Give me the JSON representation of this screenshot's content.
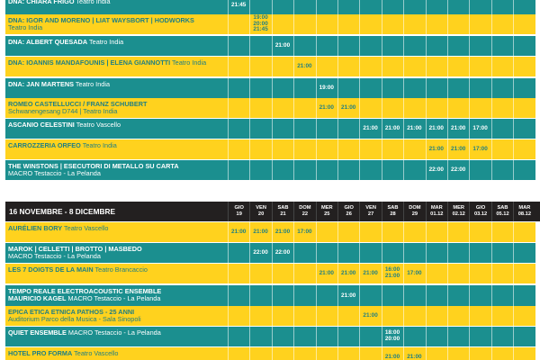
{
  "sections": [
    {
      "rows": [
        {
          "name": "DNA: CHIARA FRIGO",
          "sub": " Teatro India",
          "color": "teal",
          "times": [
            {
              "c": 0,
              "t": "21:45"
            }
          ]
        },
        {
          "name": "DNA: IGOR AND MORENO | LIAT WAYSBORT | HODWORKS",
          "sub": "Teatro India",
          "color": "yellow",
          "times": [
            {
              "c": 1,
              "t": "19:00 20:00 21:45"
            }
          ]
        },
        {
          "name": "DNA: ALBERT QUESADA",
          "sub": " Teatro India",
          "color": "teal",
          "times": [
            {
              "c": 2,
              "t": "21:00"
            }
          ]
        },
        {
          "name": "DNA: IOANNIS MANDAFOUNIS | ELENA GIANNOTTI",
          "sub": " Teatro India",
          "color": "yellow",
          "times": [
            {
              "c": 3,
              "t": "21:00"
            }
          ]
        },
        {
          "name": "DNA: JAN MARTENS",
          "sub": " Teatro India",
          "color": "teal",
          "times": [
            {
              "c": 4,
              "t": "19:00"
            }
          ]
        },
        {
          "name": "ROMEO CASTELLUCCI / FRANZ SCHUBERT",
          "sub": "Schwanengesang D744 | Teatro India",
          "color": "yellow",
          "times": [
            {
              "c": 4,
              "t": "21:00"
            },
            {
              "c": 5,
              "t": "21:00"
            }
          ]
        },
        {
          "name": "ASCANIO CELESTINI",
          "sub": " Teatro Vascello",
          "color": "teal",
          "times": [
            {
              "c": 6,
              "t": "21:00"
            },
            {
              "c": 7,
              "t": "21:00"
            },
            {
              "c": 8,
              "t": "21:00"
            },
            {
              "c": 9,
              "t": "21:00"
            },
            {
              "c": 10,
              "t": "21:00"
            },
            {
              "c": 11,
              "t": "17:00"
            }
          ]
        },
        {
          "name": "CARROZZERIA ORFEO",
          "sub": " Teatro India",
          "color": "yellow",
          "times": [
            {
              "c": 9,
              "t": "21:00"
            },
            {
              "c": 10,
              "t": "21:00"
            },
            {
              "c": 11,
              "t": "17:00"
            }
          ]
        },
        {
          "name": "THE WINSTONS | ESECUTORI DI METALLO SU CARTA",
          "sub": "MACRO Testaccio - La Pelanda",
          "color": "teal",
          "times": [
            {
              "c": 9,
              "t": "22:00"
            },
            {
              "c": 10,
              "t": "22:00"
            }
          ]
        }
      ]
    },
    {
      "header": {
        "title": "16 NOVEMBRE - 8 DICEMBRE",
        "days": [
          {
            "d": "GIO",
            "n": "19"
          },
          {
            "d": "VEN",
            "n": "20"
          },
          {
            "d": "SAB",
            "n": "21"
          },
          {
            "d": "DOM",
            "n": "22"
          },
          {
            "d": "MER",
            "n": "25"
          },
          {
            "d": "GIO",
            "n": "26"
          },
          {
            "d": "VEN",
            "n": "27"
          },
          {
            "d": "SAB",
            "n": "28"
          },
          {
            "d": "DOM",
            "n": "29"
          },
          {
            "d": "MAR",
            "n": "01.12"
          },
          {
            "d": "MER",
            "n": "02.12"
          },
          {
            "d": "GIO",
            "n": "03.12"
          },
          {
            "d": "SAB",
            "n": "05.12"
          },
          {
            "d": "MAR",
            "n": "08.12"
          }
        ]
      },
      "rows": [
        {
          "name": "AURÉLIEN BORY",
          "sub": " Teatro Vascello",
          "color": "yellow",
          "times": [
            {
              "c": 0,
              "t": "21:00"
            },
            {
              "c": 1,
              "t": "21:00"
            },
            {
              "c": 2,
              "t": "21:00"
            },
            {
              "c": 3,
              "t": "17:00"
            }
          ]
        },
        {
          "name": "MAROK | CELLETTI | BROTTO | MASBEDO",
          "sub": "MACRO Testaccio - La Pelanda",
          "color": "teal",
          "times": [
            {
              "c": 1,
              "t": "22:00"
            },
            {
              "c": 2,
              "t": "22:00"
            }
          ]
        },
        {
          "name": "LES 7 DOIGTS DE LA MAIN",
          "sub": " Teatro Brancaccio",
          "color": "yellow",
          "times": [
            {
              "c": 4,
              "t": "21:00"
            },
            {
              "c": 5,
              "t": "21:00"
            },
            {
              "c": 6,
              "t": "21:00"
            },
            {
              "c": 7,
              "t": "16:00 21:00"
            },
            {
              "c": 8,
              "t": "17:00"
            }
          ]
        },
        {
          "name": "TEMPO REALE ELECTROACOUSTIC ENSEMBLE",
          "name2": "MAURICIO KAGEL",
          "sub": " MACRO Testaccio - La Pelanda",
          "color": "teal",
          "times": [
            {
              "c": 5,
              "t": "21:00"
            }
          ]
        },
        {
          "name": "EPICA ETICA ETNICA PATHOS - 25 ANNI",
          "sub": "Auditorium Parco della Musica - Sala Sinopoli",
          "color": "yellow",
          "times": [
            {
              "c": 6,
              "t": "21:00"
            }
          ]
        },
        {
          "name": "QUIET ENSEMBLE",
          "sub": " MACRO Testaccio - La Pelanda",
          "color": "teal",
          "times": [
            {
              "c": 7,
              "t": "18:00 20:00"
            }
          ]
        },
        {
          "name": "HOTEL PRO FORMA",
          "sub": " Teatro Vascello",
          "color": "yellow",
          "times": [
            {
              "c": 7,
              "t": "21:00"
            },
            {
              "c": 8,
              "t": "21:00"
            }
          ]
        }
      ]
    }
  ]
}
